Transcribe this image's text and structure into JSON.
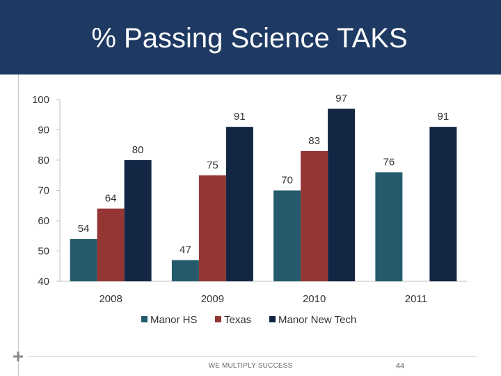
{
  "slide": {
    "title": "% Passing Science TAKS",
    "footer": "WE MULTIPLY SUCCESS",
    "page_number": "44"
  },
  "colors": {
    "header": "#1e3a63",
    "series": [
      "#245a6b",
      "#943634",
      "#132745"
    ]
  },
  "chart_data": {
    "type": "bar",
    "title": "% Passing Science TAKS",
    "xlabel": "",
    "ylabel": "",
    "ylim": [
      40,
      100
    ],
    "yticks": [
      40,
      50,
      60,
      70,
      80,
      90,
      100
    ],
    "categories": [
      "2008",
      "2009",
      "2010",
      "2011"
    ],
    "series": [
      {
        "name": "Manor HS",
        "values": [
          54,
          47,
          70,
          76
        ]
      },
      {
        "name": "Texas",
        "values": [
          64,
          75,
          83,
          null
        ]
      },
      {
        "name": "Manor New Tech",
        "values": [
          80,
          91,
          97,
          91
        ]
      }
    ],
    "legend_position": "bottom",
    "grid": false
  }
}
